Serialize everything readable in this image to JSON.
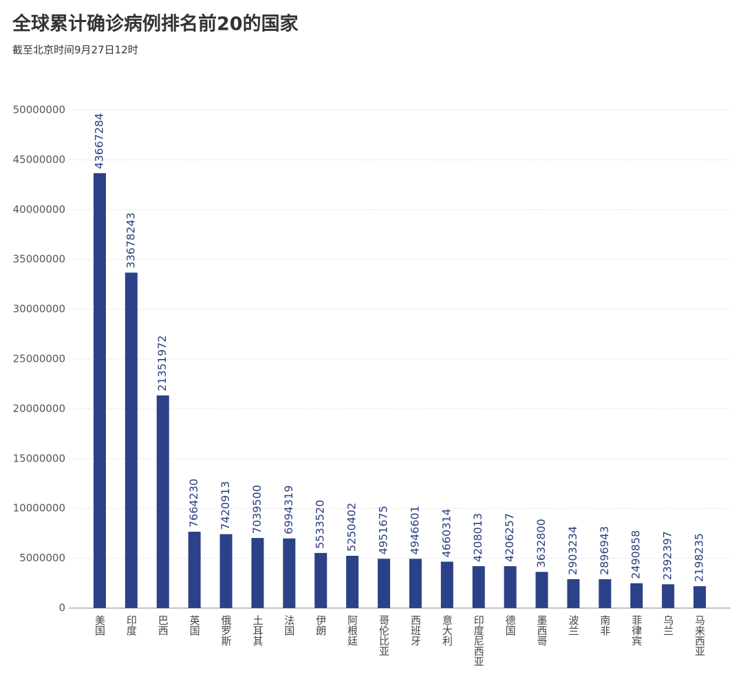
{
  "chart_data": {
    "type": "bar",
    "title": "全球累计确诊病例排名前20的国家",
    "subtitle": "截至北京时间9月27日12时",
    "categories": [
      "美国",
      "印度",
      "巴西",
      "英国",
      "俄罗斯",
      "土耳其",
      "法国",
      "伊朗",
      "阿根廷",
      "哥伦比亚",
      "西班牙",
      "意大利",
      "印度尼西亚",
      "德国",
      "墨西哥",
      "波兰",
      "南非",
      "菲律宾",
      "乌兰",
      "马来西亚"
    ],
    "values": [
      43667284,
      33678243,
      21351972,
      7664230,
      7420913,
      7039500,
      6994319,
      5533520,
      5250402,
      4951675,
      4946601,
      4660314,
      4208013,
      4206257,
      3632800,
      2903234,
      2896943,
      2490858,
      2392397,
      2198235
    ],
    "color": "#2b4188",
    "ylim": [
      0,
      50000000
    ],
    "yticks": [
      0,
      5000000,
      10000000,
      15000000,
      20000000,
      25000000,
      30000000,
      35000000,
      40000000,
      45000000,
      50000000
    ],
    "grid": true
  }
}
